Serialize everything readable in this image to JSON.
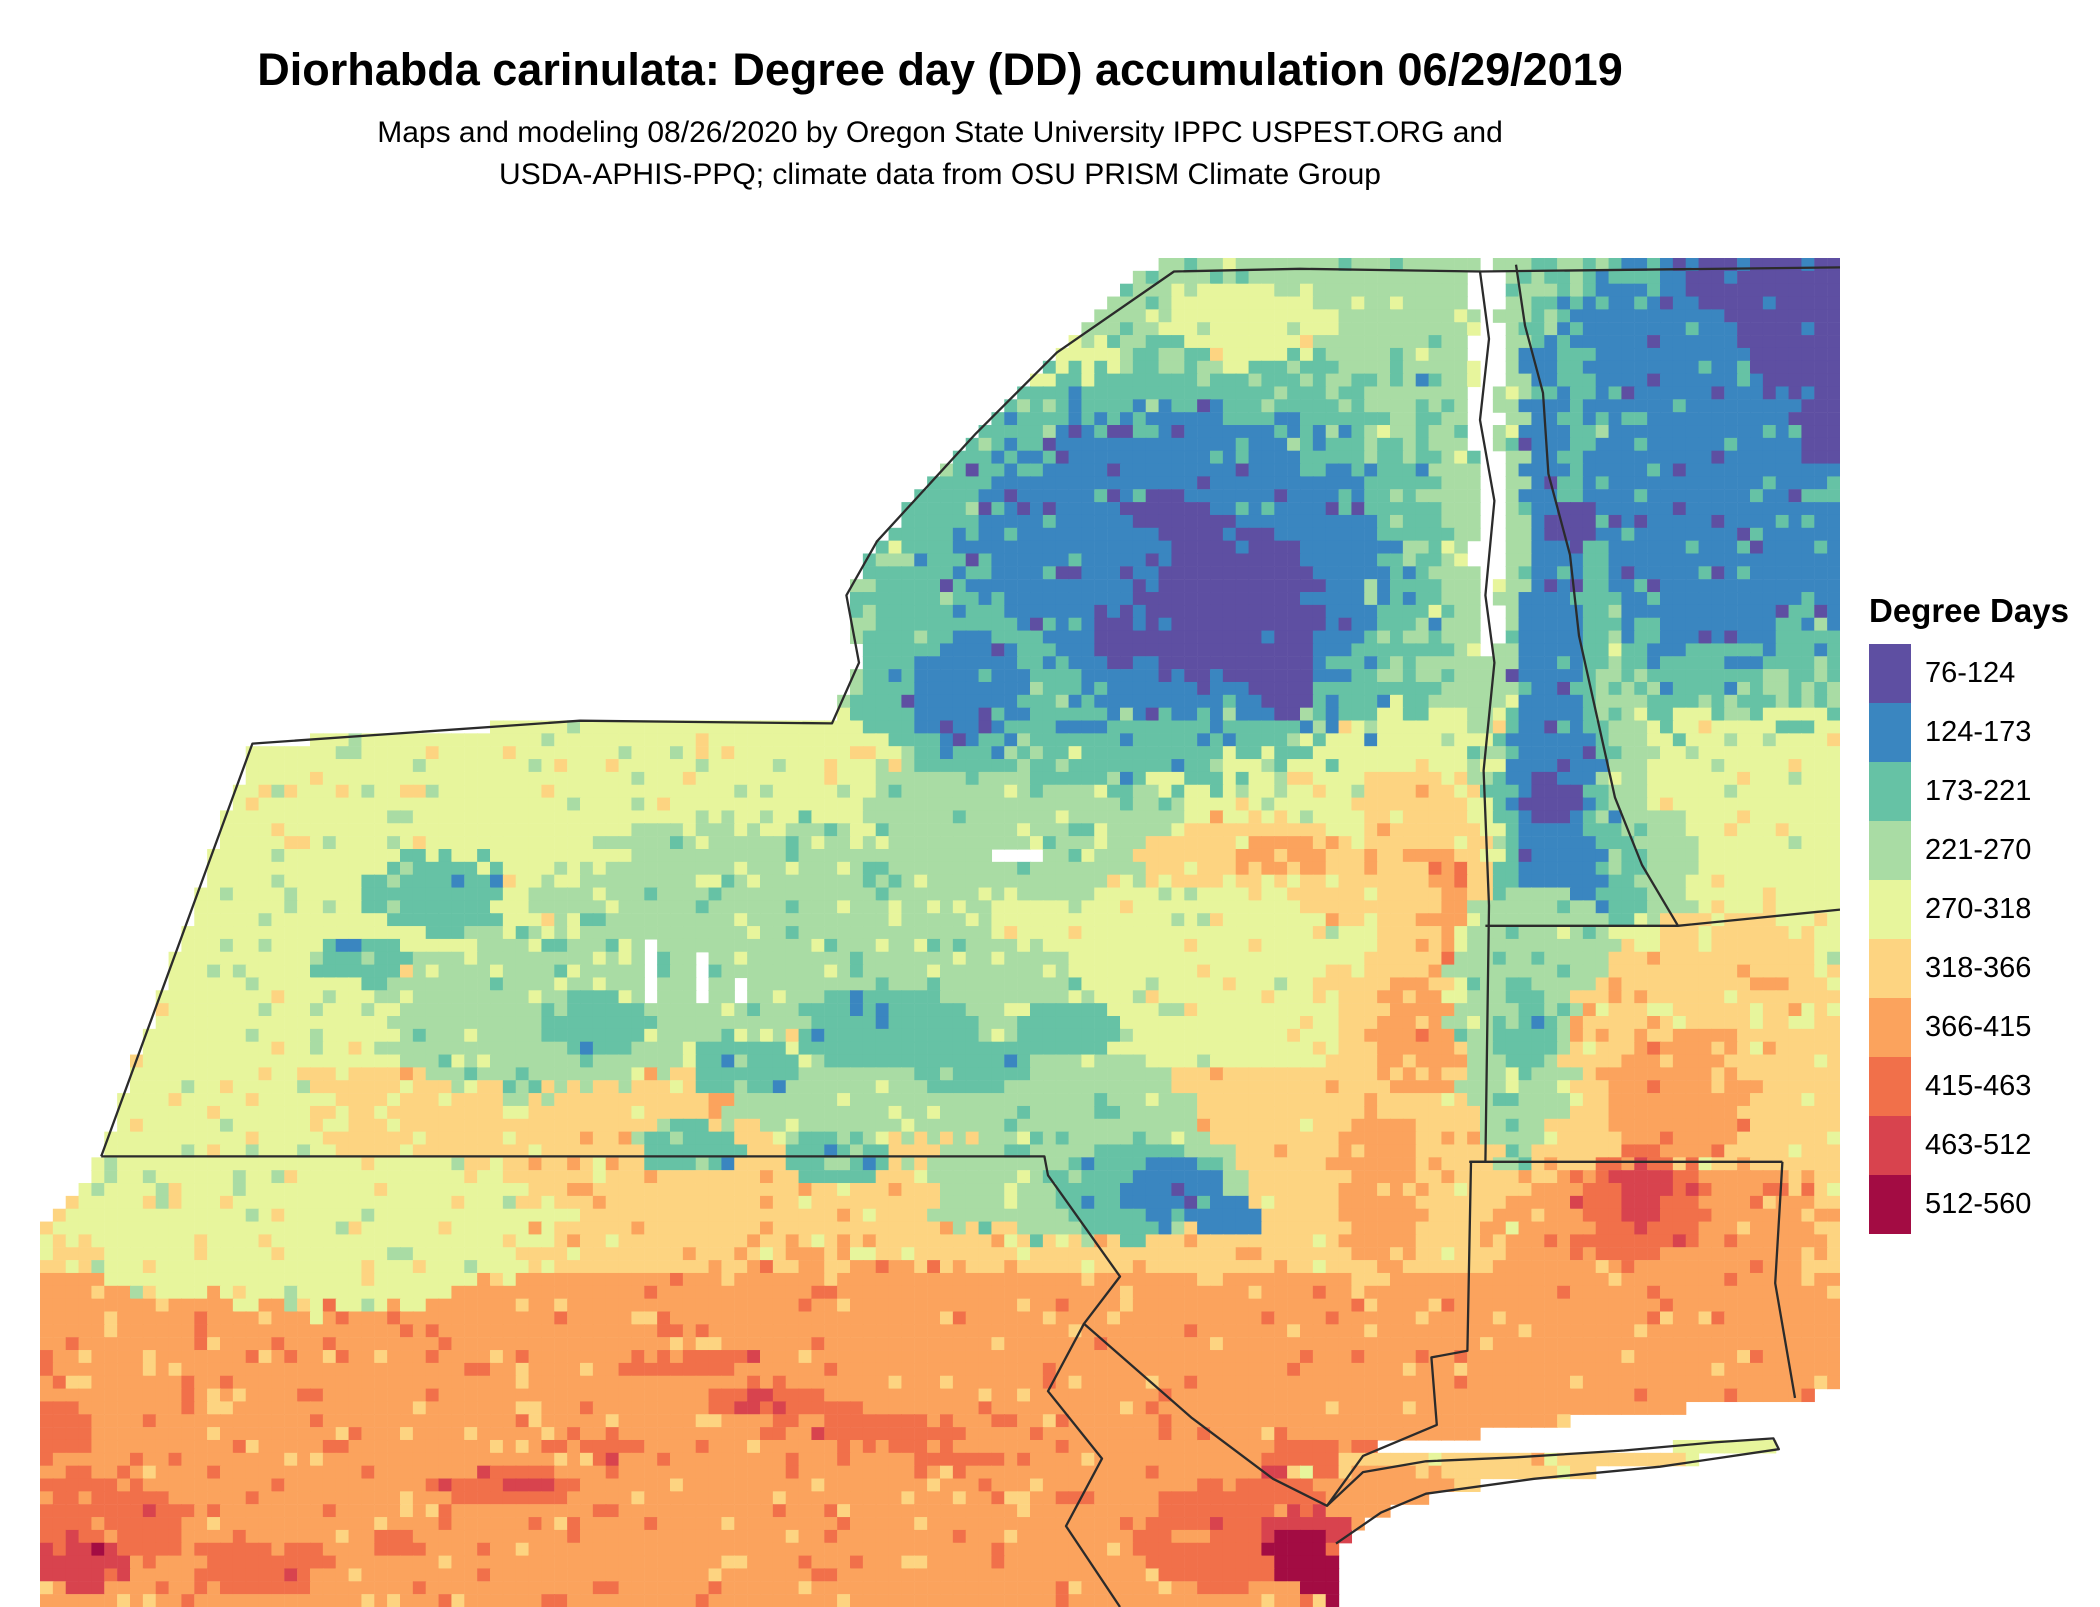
{
  "title": "Diorhabda carinulata: Degree day (DD) accumulation 06/29/2019",
  "subtitle_line1": "Maps and modeling 08/26/2020 by Oregon State University IPPC USPEST.ORG and",
  "subtitle_line2": "USDA-APHIS-PPQ; climate data from OSU PRISM Climate Group",
  "legend": {
    "title": "Degree Days",
    "entries": [
      "76-124",
      "124-173",
      "173-221",
      "221-270",
      "270-318",
      "318-366",
      "366-415",
      "415-463",
      "463-512",
      "512-560"
    ]
  },
  "palette": [
    "#5e4fa2",
    "#3a86c0",
    "#66c2a5",
    "#a9dca4",
    "#e7f59c",
    "#fdd481",
    "#fba35d",
    "#f1704a",
    "#d8434e",
    "#a30c43"
  ],
  "border_color": "#2b2b2b",
  "map_model": {
    "cols": 140,
    "rows": 105,
    "base_bins": [
      [
        33,
        3
      ],
      [
        60,
        4
      ],
      [
        75,
        5
      ],
      [
        999,
        6
      ]
    ],
    "mask": [
      [
        11.8,
        36
      ],
      [
        30,
        34.3
      ],
      [
        44,
        34.5
      ],
      [
        45.5,
        30
      ],
      [
        44.8,
        25
      ],
      [
        46.5,
        21
      ],
      [
        52,
        13
      ],
      [
        56.5,
        7
      ],
      [
        60,
        2
      ],
      [
        63,
        0
      ],
      [
        100,
        0
      ],
      [
        100,
        84
      ],
      [
        97,
        84.5
      ],
      [
        89,
        85.5
      ],
      [
        78,
        87.5
      ],
      [
        74,
        88.2
      ],
      [
        80,
        88.8
      ],
      [
        88,
        88.4
      ],
      [
        96.3,
        87.4
      ],
      [
        96.6,
        88.3
      ],
      [
        88,
        89.8
      ],
      [
        80,
        90.9
      ],
      [
        76,
        92.2
      ],
      [
        74,
        93.4
      ],
      [
        72,
        95.5
      ],
      [
        72.5,
        100
      ],
      [
        0,
        100
      ],
      [
        0,
        72.5
      ],
      [
        3.4,
        66.6
      ]
    ],
    "lakes": [
      [
        80.4,
        2.5,
        0.9,
        2.2
      ],
      [
        80.6,
        7,
        1.0,
        2.8
      ],
      [
        80.2,
        12,
        0.9,
        3
      ],
      [
        80.7,
        17,
        1.0,
        3
      ],
      [
        80.4,
        22,
        0.8,
        3
      ],
      [
        80.6,
        27,
        0.6,
        2.5
      ],
      [
        54.5,
        44.5,
        1.6,
        0.7
      ],
      [
        33.8,
        53,
        0.35,
        2.8
      ],
      [
        36.5,
        53.5,
        0.35,
        3
      ],
      [
        39.2,
        54,
        0.3,
        2.5
      ]
    ],
    "patches": [
      [
        4,
        55,
        10,
        6,
        5
      ],
      [
        4,
        50,
        19,
        3,
        4
      ],
      [
        4,
        67,
        5,
        5,
        3
      ],
      [
        3,
        55,
        42,
        9,
        6
      ],
      [
        3,
        40,
        50,
        12,
        8
      ],
      [
        3,
        28,
        56,
        9,
        6
      ],
      [
        3,
        50,
        56,
        8,
        6
      ],
      [
        3,
        45,
        62,
        7,
        4
      ],
      [
        3,
        57,
        63,
        7,
        4
      ],
      [
        4,
        15,
        72,
        14,
        6
      ],
      [
        4,
        8,
        64,
        8,
        5
      ],
      [
        2,
        22,
        47,
        4,
        3
      ],
      [
        2,
        31,
        57,
        3,
        2.5
      ],
      [
        2,
        39,
        60,
        3,
        2
      ],
      [
        2,
        47,
        57,
        5,
        3
      ],
      [
        2,
        36,
        66,
        3,
        2
      ],
      [
        2,
        52,
        60,
        3,
        2
      ],
      [
        2,
        44,
        67,
        3,
        2
      ],
      [
        2,
        57,
        57,
        3,
        2
      ],
      [
        2,
        18,
        52,
        3,
        2
      ],
      [
        2,
        62,
        23,
        17,
        16
      ],
      [
        1,
        63,
        23,
        12,
        12
      ],
      [
        0,
        66,
        26,
        5,
        6
      ],
      [
        0,
        63,
        19,
        2,
        2
      ],
      [
        0,
        69,
        31,
        2,
        3
      ],
      [
        0,
        60,
        28,
        1.5,
        2
      ],
      [
        2,
        51,
        32,
        6,
        6
      ],
      [
        1,
        51.5,
        32,
        3.5,
        4
      ],
      [
        2,
        92,
        16,
        15,
        18
      ],
      [
        1,
        94,
        14,
        11,
        15
      ],
      [
        0,
        98,
        5,
        4,
        6
      ],
      [
        0,
        94,
        2,
        2.5,
        2
      ],
      [
        0,
        99,
        12,
        1.5,
        3
      ],
      [
        3,
        83,
        8,
        1.6,
        6
      ],
      [
        3,
        84.5,
        18,
        1.7,
        6
      ],
      [
        3,
        86,
        28,
        1.9,
        6
      ],
      [
        3,
        87.5,
        37,
        2,
        5
      ],
      [
        3,
        89.5,
        45,
        2.6,
        4
      ],
      [
        2,
        83,
        12,
        3.5,
        8
      ],
      [
        2,
        83.5,
        25,
        3.8,
        10
      ],
      [
        2,
        84,
        38,
        3.6,
        8
      ],
      [
        2,
        85,
        46,
        4,
        6
      ],
      [
        1,
        83,
        12,
        2,
        6
      ],
      [
        1,
        83.5,
        25,
        2.3,
        8
      ],
      [
        1,
        84,
        38,
        2.2,
        7
      ],
      [
        1,
        84.5,
        46,
        2.5,
        5
      ],
      [
        0,
        84,
        40,
        1.5,
        2
      ],
      [
        0,
        85,
        20,
        1.3,
        2
      ],
      [
        3,
        80.3,
        18,
        2.3,
        20
      ],
      [
        4,
        80.3,
        8,
        1,
        5
      ],
      [
        5,
        77,
        45,
        3.5,
        7
      ],
      [
        6,
        77.5,
        48,
        1.8,
        4
      ],
      [
        5,
        75,
        41,
        2,
        3
      ],
      [
        5,
        67,
        44,
        6,
        2.5
      ],
      [
        5,
        74,
        47,
        4,
        3
      ],
      [
        6,
        69,
        44.5,
        2.5,
        1.5
      ],
      [
        5,
        76,
        57,
        4.5,
        7
      ],
      [
        6,
        76.5,
        58,
        2.2,
        5
      ],
      [
        5,
        74,
        68,
        5,
        8
      ],
      [
        6,
        74.5,
        69,
        2.5,
        6
      ],
      [
        3,
        83,
        54,
        5,
        7
      ],
      [
        3,
        82,
        58,
        3,
        9
      ],
      [
        2,
        82.5,
        57,
        1.5,
        3.5
      ],
      [
        5,
        93,
        58,
        8,
        9
      ],
      [
        6,
        91,
        62,
        4,
        5
      ],
      [
        6,
        90,
        72,
        9,
        6
      ],
      [
        7,
        89,
        70,
        3.5,
        4.5
      ],
      [
        8,
        89,
        69.5,
        1.5,
        2.2
      ],
      [
        3,
        58,
        68,
        9,
        5
      ],
      [
        2,
        61,
        69,
        5,
        3.5
      ],
      [
        1,
        63,
        69,
        2.8,
        2.2
      ],
      [
        1,
        66,
        71,
        2,
        1.5
      ],
      [
        6,
        45,
        82,
        15,
        8
      ],
      [
        7,
        36,
        82,
        4,
        1.2
      ],
      [
        7,
        41,
        85,
        4.5,
        1.3
      ],
      [
        7,
        47,
        87,
        4,
        1.2
      ],
      [
        7,
        31,
        88,
        3,
        1
      ],
      [
        7,
        26,
        91,
        4,
        1.3
      ],
      [
        7,
        16,
        95,
        5,
        1.6
      ],
      [
        7,
        52,
        89,
        3,
        1
      ],
      [
        8,
        40,
        85,
        1.8,
        0.8
      ],
      [
        8,
        27,
        91,
        1.5,
        0.7
      ],
      [
        6,
        8,
        90,
        14,
        9
      ],
      [
        7,
        3,
        94,
        5,
        4
      ],
      [
        7,
        12,
        97,
        4,
        2
      ],
      [
        7,
        0,
        87,
        3,
        2.5
      ],
      [
        8,
        2,
        97,
        3,
        2
      ],
      [
        6,
        64,
        94,
        9,
        6
      ],
      [
        7,
        66,
        95,
        5,
        4
      ],
      [
        7,
        71,
        91,
        4,
        3
      ],
      [
        8,
        70.5,
        95,
        3,
        2.8
      ],
      [
        9,
        70,
        96.5,
        1.8,
        2
      ],
      [
        9,
        72,
        98,
        1.5,
        1.5
      ],
      [
        5,
        82,
        90.3,
        12,
        2
      ],
      [
        6,
        75,
        91.5,
        4,
        1.8
      ],
      [
        4,
        93,
        88.2,
        3,
        1
      ]
    ],
    "borders": {
      "ny_outline": [
        [
          3.4,
          66.6
        ],
        [
          55.8,
          66.6
        ],
        [
          56,
          68
        ],
        [
          60,
          75.5
        ],
        [
          58,
          79
        ],
        [
          64,
          86
        ],
        [
          68.5,
          90.5
        ],
        [
          71.5,
          92.5
        ],
        [
          73.5,
          88.8
        ],
        [
          77.6,
          86.5
        ],
        [
          77.3,
          81.5
        ],
        [
          79.3,
          81
        ],
        [
          79.5,
          67
        ],
        [
          80.3,
          67
        ],
        [
          80.5,
          48
        ],
        [
          80.2,
          38
        ],
        [
          80.8,
          30
        ],
        [
          80.3,
          25
        ],
        [
          80.8,
          18
        ],
        [
          80,
          12
        ],
        [
          80.5,
          6
        ],
        [
          80,
          1
        ],
        [
          70,
          0.8
        ],
        [
          63,
          1
        ],
        [
          56.5,
          7
        ],
        [
          52,
          13
        ],
        [
          46.5,
          21
        ],
        [
          44.8,
          25
        ],
        [
          45.5,
          30
        ],
        [
          44,
          34.5
        ],
        [
          30,
          34.3
        ],
        [
          11.8,
          36
        ],
        [
          3.4,
          66.6
        ]
      ],
      "canada_top_east": [
        [
          80,
          1
        ],
        [
          100,
          0.7
        ]
      ],
      "vt_nh": [
        [
          82,
          0.5
        ],
        [
          82.5,
          5
        ],
        [
          83.5,
          10
        ],
        [
          83.8,
          16
        ],
        [
          85,
          22
        ],
        [
          85.5,
          28
        ],
        [
          86.5,
          34
        ],
        [
          87.5,
          40
        ],
        [
          89,
          45
        ],
        [
          91,
          49.5
        ]
      ],
      "ma_north": [
        [
          80.3,
          49.5
        ],
        [
          91,
          49.5
        ],
        [
          100,
          48.3
        ]
      ],
      "ma_south": [
        [
          79.4,
          67
        ],
        [
          96.8,
          67
        ]
      ],
      "ct_ri": [
        [
          96.8,
          67
        ],
        [
          96.4,
          76
        ],
        [
          97.5,
          84.5
        ]
      ],
      "nj_pa": [
        [
          58,
          79
        ],
        [
          56,
          84
        ],
        [
          59,
          89
        ],
        [
          57,
          94
        ],
        [
          60,
          100
        ]
      ],
      "long_island": [
        [
          71.5,
          92.5
        ],
        [
          73.5,
          90
        ],
        [
          77,
          89.2
        ],
        [
          82,
          88.9
        ],
        [
          88,
          88.4
        ],
        [
          93,
          87.8
        ],
        [
          96.3,
          87.5
        ],
        [
          96.6,
          88.3
        ],
        [
          90,
          89.6
        ],
        [
          83,
          90.5
        ],
        [
          77,
          91.6
        ],
        [
          74.5,
          93
        ],
        [
          72,
          95.3
        ]
      ]
    }
  }
}
